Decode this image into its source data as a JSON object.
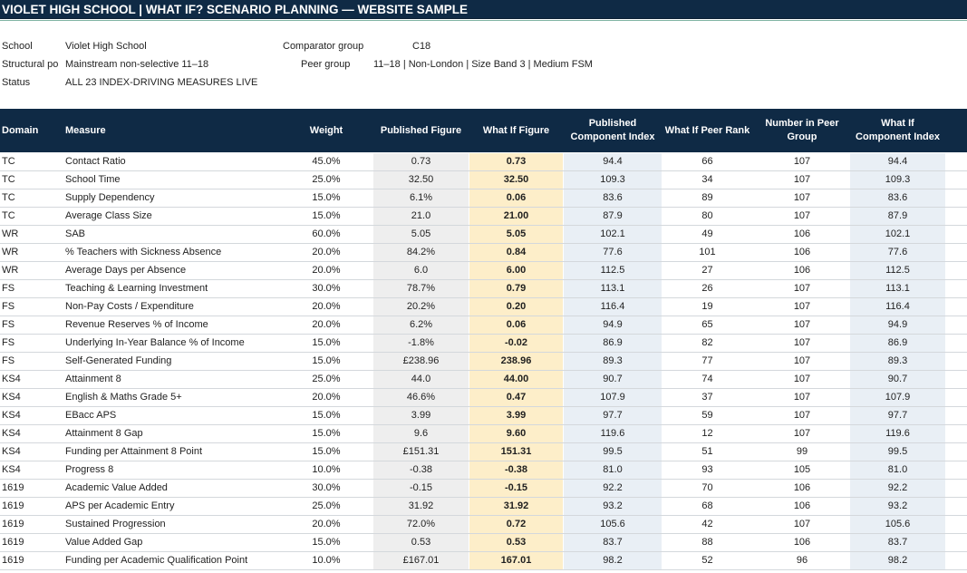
{
  "title": "VIOLET HIGH SCHOOL | WHAT IF? SCENARIO PLANNING — WEBSITE SAMPLE",
  "meta": {
    "school_label": "School",
    "school_value": "Violet High School",
    "structural_label": "Structural po",
    "structural_value": "Mainstream non-selective 11–18",
    "status_label": "Status",
    "status_value": "ALL 23 INDEX-DRIVING MEASURES LIVE",
    "comparator_label": "Comparator group",
    "comparator_value": "C18",
    "peer_label": "Peer group",
    "peer_value": "11–18 | Non-London | Size Band 3 | Medium FSM"
  },
  "columns": {
    "domain": "Domain",
    "measure": "Measure",
    "weight": "Weight",
    "published_figure": "Published Figure",
    "what_if_figure": "What If Figure",
    "published_index_1": "Published",
    "published_index_2": "Component Index",
    "what_if_rank": "What If Peer Rank",
    "peer_count_1": "Number in Peer",
    "peer_count_2": "Group",
    "what_if_index_1": "What If",
    "what_if_index_2": "Component Index"
  },
  "rows": [
    {
      "domain": "TC",
      "measure": "Contact Ratio",
      "weight": "45.0%",
      "published": "0.73",
      "whatif": "0.73",
      "pub_index": "94.4",
      "rank": "66",
      "peers": "107",
      "wi_index": "94.4"
    },
    {
      "domain": "TC",
      "measure": "School Time",
      "weight": "25.0%",
      "published": "32.50",
      "whatif": "32.50",
      "pub_index": "109.3",
      "rank": "34",
      "peers": "107",
      "wi_index": "109.3"
    },
    {
      "domain": "TC",
      "measure": "Supply Dependency",
      "weight": "15.0%",
      "published": "6.1%",
      "whatif": "0.06",
      "pub_index": "83.6",
      "rank": "89",
      "peers": "107",
      "wi_index": "83.6"
    },
    {
      "domain": "TC",
      "measure": "Average Class Size",
      "weight": "15.0%",
      "published": "21.0",
      "whatif": "21.00",
      "pub_index": "87.9",
      "rank": "80",
      "peers": "107",
      "wi_index": "87.9"
    },
    {
      "domain": "WR",
      "measure": "SAB",
      "weight": "60.0%",
      "published": "5.05",
      "whatif": "5.05",
      "pub_index": "102.1",
      "rank": "49",
      "peers": "106",
      "wi_index": "102.1"
    },
    {
      "domain": "WR",
      "measure": "% Teachers with Sickness Absence",
      "weight": "20.0%",
      "published": "84.2%",
      "whatif": "0.84",
      "pub_index": "77.6",
      "rank": "101",
      "peers": "106",
      "wi_index": "77.6"
    },
    {
      "domain": "WR",
      "measure": "Average Days per Absence",
      "weight": "20.0%",
      "published": "6.0",
      "whatif": "6.00",
      "pub_index": "112.5",
      "rank": "27",
      "peers": "106",
      "wi_index": "112.5"
    },
    {
      "domain": "FS",
      "measure": "Teaching & Learning Investment",
      "weight": "30.0%",
      "published": "78.7%",
      "whatif": "0.79",
      "pub_index": "113.1",
      "rank": "26",
      "peers": "107",
      "wi_index": "113.1"
    },
    {
      "domain": "FS",
      "measure": "Non-Pay Costs / Expenditure",
      "weight": "20.0%",
      "published": "20.2%",
      "whatif": "0.20",
      "pub_index": "116.4",
      "rank": "19",
      "peers": "107",
      "wi_index": "116.4"
    },
    {
      "domain": "FS",
      "measure": "Revenue Reserves % of Income",
      "weight": "20.0%",
      "published": "6.2%",
      "whatif": "0.06",
      "pub_index": "94.9",
      "rank": "65",
      "peers": "107",
      "wi_index": "94.9"
    },
    {
      "domain": "FS",
      "measure": "Underlying In-Year Balance % of Income",
      "weight": "15.0%",
      "published": "-1.8%",
      "whatif": "-0.02",
      "pub_index": "86.9",
      "rank": "82",
      "peers": "107",
      "wi_index": "86.9"
    },
    {
      "domain": "FS",
      "measure": "Self-Generated Funding",
      "weight": "15.0%",
      "published": "£238.96",
      "whatif": "238.96",
      "pub_index": "89.3",
      "rank": "77",
      "peers": "107",
      "wi_index": "89.3"
    },
    {
      "domain": "KS4",
      "measure": "Attainment 8",
      "weight": "25.0%",
      "published": "44.0",
      "whatif": "44.00",
      "pub_index": "90.7",
      "rank": "74",
      "peers": "107",
      "wi_index": "90.7"
    },
    {
      "domain": "KS4",
      "measure": "English & Maths Grade 5+",
      "weight": "20.0%",
      "published": "46.6%",
      "whatif": "0.47",
      "pub_index": "107.9",
      "rank": "37",
      "peers": "107",
      "wi_index": "107.9"
    },
    {
      "domain": "KS4",
      "measure": "EBacc APS",
      "weight": "15.0%",
      "published": "3.99",
      "whatif": "3.99",
      "pub_index": "97.7",
      "rank": "59",
      "peers": "107",
      "wi_index": "97.7"
    },
    {
      "domain": "KS4",
      "measure": "Attainment 8 Gap",
      "weight": "15.0%",
      "published": "9.6",
      "whatif": "9.60",
      "pub_index": "119.6",
      "rank": "12",
      "peers": "107",
      "wi_index": "119.6"
    },
    {
      "domain": "KS4",
      "measure": "Funding per Attainment 8 Point",
      "weight": "15.0%",
      "published": "£151.31",
      "whatif": "151.31",
      "pub_index": "99.5",
      "rank": "51",
      "peers": "99",
      "wi_index": "99.5"
    },
    {
      "domain": "KS4",
      "measure": "Progress 8",
      "weight": "10.0%",
      "published": "-0.38",
      "whatif": "-0.38",
      "pub_index": "81.0",
      "rank": "93",
      "peers": "105",
      "wi_index": "81.0"
    },
    {
      "domain": "1619",
      "measure": "Academic Value Added",
      "weight": "30.0%",
      "published": "-0.15",
      "whatif": "-0.15",
      "pub_index": "92.2",
      "rank": "70",
      "peers": "106",
      "wi_index": "92.2"
    },
    {
      "domain": "1619",
      "measure": "APS per Academic Entry",
      "weight": "25.0%",
      "published": "31.92",
      "whatif": "31.92",
      "pub_index": "93.2",
      "rank": "68",
      "peers": "106",
      "wi_index": "93.2"
    },
    {
      "domain": "1619",
      "measure": "Sustained Progression",
      "weight": "20.0%",
      "published": "72.0%",
      "whatif": "0.72",
      "pub_index": "105.6",
      "rank": "42",
      "peers": "107",
      "wi_index": "105.6"
    },
    {
      "domain": "1619",
      "measure": "Value Added Gap",
      "weight": "15.0%",
      "published": "0.53",
      "whatif": "0.53",
      "pub_index": "83.7",
      "rank": "88",
      "peers": "106",
      "wi_index": "83.7"
    },
    {
      "domain": "1619",
      "measure": "Funding per Academic Qualification Point",
      "weight": "10.0%",
      "published": "£167.01",
      "whatif": "167.01",
      "pub_index": "98.2",
      "rank": "52",
      "peers": "96",
      "wi_index": "98.2"
    }
  ]
}
